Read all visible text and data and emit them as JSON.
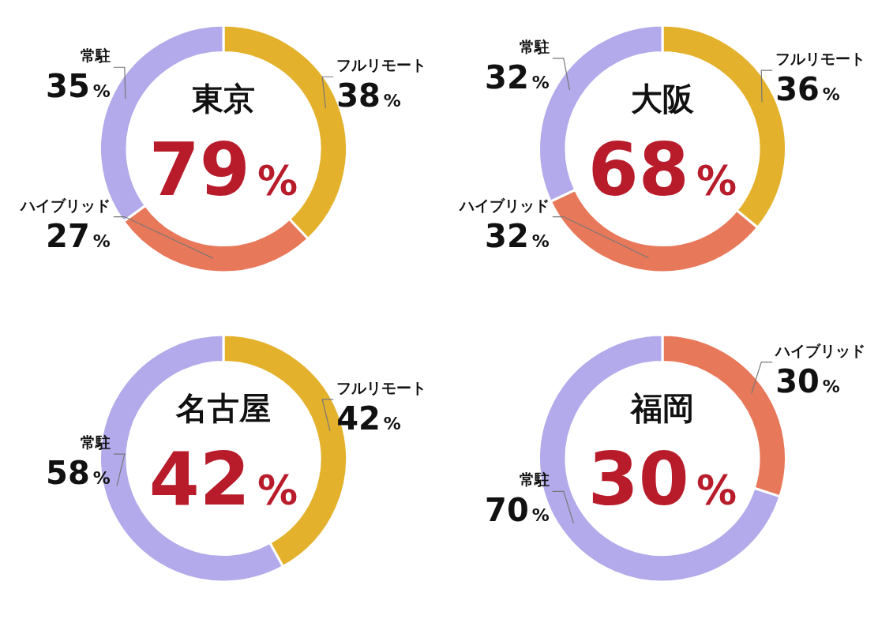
{
  "chart_data": [
    {
      "type": "donut",
      "title": "東京",
      "annotations": [
        "79%"
      ],
      "categories": [
        "フルリモート",
        "ハイブリッド",
        "常駐"
      ],
      "values": [
        38,
        27,
        35
      ],
      "value_labels": [
        "38%",
        "27%",
        "35%"
      ],
      "colors": [
        "#e4b12c",
        "#e8785a",
        "#b2aaea"
      ],
      "legend": false
    },
    {
      "type": "donut",
      "title": "大阪",
      "annotations": [
        "68%"
      ],
      "categories": [
        "フルリモート",
        "ハイブリッド",
        "常駐"
      ],
      "values": [
        36,
        32,
        32
      ],
      "value_labels": [
        "36%",
        "32%",
        "32%"
      ],
      "colors": [
        "#e4b12c",
        "#e8785a",
        "#b2aaea"
      ],
      "legend": false
    },
    {
      "type": "donut",
      "title": "名古屋",
      "annotations": [
        "42%"
      ],
      "categories": [
        "フルリモート",
        "常駐"
      ],
      "values": [
        42,
        58
      ],
      "value_labels": [
        "42%",
        "58%"
      ],
      "colors": [
        "#e4b12c",
        "#b2aaea"
      ],
      "legend": false
    },
    {
      "type": "donut",
      "title": "福岡",
      "annotations": [
        "30%"
      ],
      "categories": [
        "ハイブリッド",
        "常駐"
      ],
      "values": [
        30,
        70
      ],
      "value_labels": [
        "30%",
        "70%"
      ],
      "colors": [
        "#e8785a",
        "#b2aaea"
      ],
      "legend": false
    }
  ]
}
